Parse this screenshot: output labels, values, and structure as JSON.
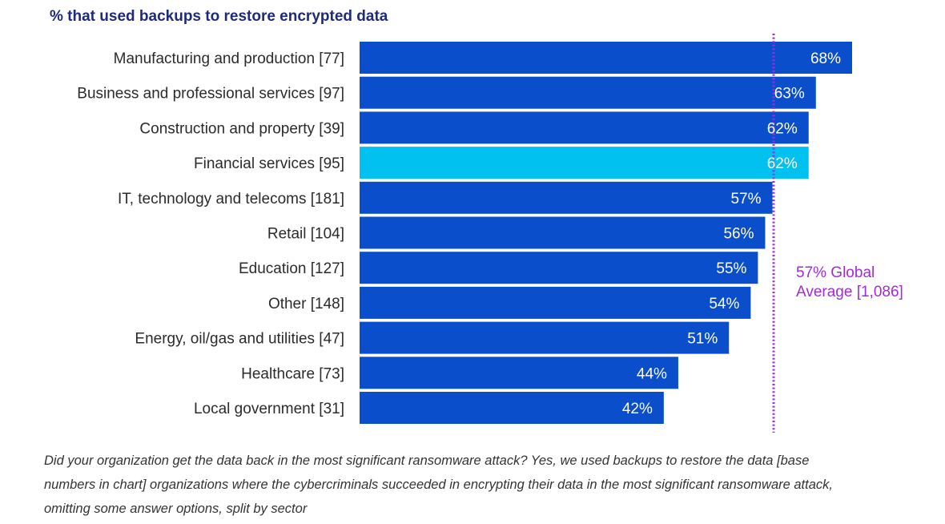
{
  "colors": {
    "bar": "#0b4ecb",
    "bar_highlight": "#00c1f0",
    "average_line": "#a22ae0",
    "title": "#1f2a78"
  },
  "chart_data": {
    "type": "bar",
    "orientation": "horizontal",
    "title": "% that used backups to restore encrypted data",
    "categories": [
      "Manufacturing and production [77]",
      "Business and professional services [97]",
      "Construction and property [39]",
      "Financial services [95]",
      "IT, technology and telecoms [181]",
      "Retail [104]",
      "Education [127]",
      "Other [148]",
      "Energy, oil/gas and utilities [47]",
      "Healthcare [73]",
      "Local government [31]"
    ],
    "values": [
      68,
      63,
      62,
      62,
      57,
      56,
      55,
      54,
      51,
      44,
      42
    ],
    "value_labels": [
      "68%",
      "63%",
      "62%",
      "62%",
      "57%",
      "56%",
      "55%",
      "54%",
      "51%",
      "44%",
      "42%"
    ],
    "highlighted_category": "Financial services [95]",
    "reference_line": {
      "value": 57,
      "label_line1": "57% Global",
      "label_line2": "Average [1,086]"
    },
    "xlim": [
      0,
      68
    ],
    "grid": false,
    "legend": "none"
  },
  "footnote": "Did your organization get the data back in the most significant ransomware attack? Yes, we used backups to restore the data [base numbers in chart] organizations where the cybercriminals succeeded in encrypting their data in the most significant ransomware attack, omitting some answer options, split by sector"
}
